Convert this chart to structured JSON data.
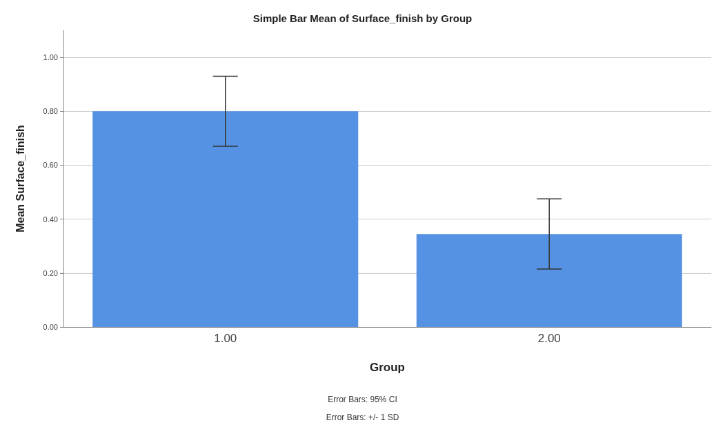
{
  "chart_data": {
    "type": "bar",
    "title": "Simple Bar Mean of Surface_finish by Group",
    "xlabel": "Group",
    "ylabel": "Mean Surface_finish",
    "categories": [
      "1.00",
      "2.00"
    ],
    "values": [
      0.8,
      0.345
    ],
    "errors": [
      0.13,
      0.13
    ],
    "color": "#5592e3",
    "ylim": [
      0,
      1.1
    ],
    "yticks": [
      {
        "value": 0,
        "label": "0.00"
      },
      {
        "value": 0.2,
        "label": "0.20"
      },
      {
        "value": 0.4,
        "label": "0.40"
      },
      {
        "value": 0.6,
        "label": "0.60"
      },
      {
        "value": 0.8,
        "label": "0.80"
      },
      {
        "value": 1.0,
        "label": "1.00"
      }
    ],
    "grid": "y",
    "annotations": [
      "Error Bars: 95% CI",
      "Error Bars: +/- 1 SD"
    ]
  }
}
